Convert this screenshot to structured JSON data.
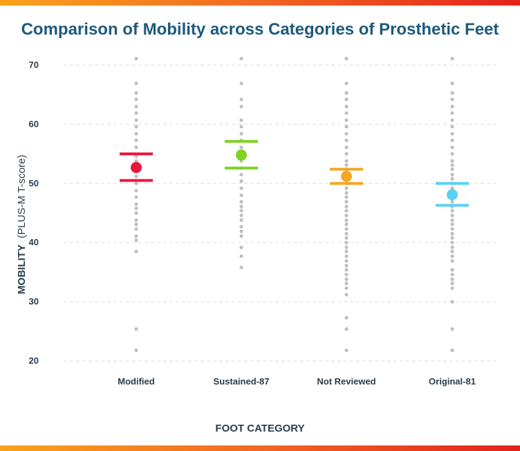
{
  "colors": {
    "title": "#1d5a7c",
    "text": "#2a3d4c",
    "grid": "#dddddd",
    "dots": "#bfbfbf",
    "banner_start": "#f9a21c",
    "banner_end": "#e2231a"
  },
  "chart_data": {
    "type": "scatter",
    "title": "Comparison of Mobility across Categories of Prosthetic Feet",
    "xlabel": "FOOT CATEGORY",
    "ylabel": {
      "main": "MOBILITY",
      "unit": "(PLUS-M T-score)"
    },
    "ylim": [
      20,
      70
    ],
    "yticks": [
      20,
      30,
      40,
      50,
      60,
      70
    ],
    "grid": true,
    "categories": [
      "Modified",
      "Sustained-87",
      "Not Reviewed",
      "Original-81"
    ],
    "series": [
      {
        "category": "Modified",
        "color": "#e8173f",
        "mean": 52.7,
        "upper": 55.0,
        "lower": 50.5,
        "points": [
          71.1,
          66.9,
          65.3,
          64.2,
          63.0,
          61.9,
          60.7,
          59.6,
          58.4,
          57.3,
          56.1,
          54.6,
          53.8,
          52.4,
          51.2,
          50.0,
          48.8,
          47.7,
          46.5,
          45.8,
          45.0,
          43.8,
          43.1,
          42.3,
          41.1,
          40.4,
          38.5,
          25.4,
          21.8
        ]
      },
      {
        "category": "Sustained-87",
        "color": "#7ed321",
        "mean": 54.8,
        "upper": 57.1,
        "lower": 52.6,
        "points": [
          71.1,
          66.9,
          64.2,
          63.0,
          60.7,
          59.6,
          58.4,
          57.3,
          56.1,
          55.0,
          53.8,
          52.6,
          51.5,
          50.4,
          49.2,
          48.0,
          46.9,
          46.1,
          45.4,
          44.6,
          43.8,
          42.7,
          41.9,
          41.1,
          39.2,
          37.7,
          35.8
        ]
      },
      {
        "category": "Not Reviewed",
        "color": "#f5a623",
        "mean": 51.2,
        "upper": 52.4,
        "lower": 50.0,
        "points": [
          71.1,
          66.9,
          65.3,
          64.2,
          63.0,
          61.9,
          60.7,
          59.6,
          58.4,
          57.3,
          56.1,
          55.0,
          53.8,
          53.1,
          52.4,
          51.5,
          50.8,
          50.0,
          49.2,
          48.4,
          47.7,
          46.9,
          46.1,
          45.4,
          44.6,
          43.8,
          43.1,
          42.3,
          41.5,
          40.8,
          40.0,
          39.2,
          38.5,
          37.7,
          36.9,
          36.1,
          35.4,
          34.6,
          33.8,
          33.1,
          32.3,
          31.2,
          27.3,
          25.4,
          21.8
        ]
      },
      {
        "category": "Original-81",
        "color": "#5ad0f5",
        "mean": 48.1,
        "upper": 50.0,
        "lower": 46.3,
        "points": [
          71.1,
          66.9,
          65.3,
          64.2,
          63.0,
          61.9,
          60.7,
          59.6,
          58.4,
          57.3,
          56.1,
          55.0,
          53.8,
          53.1,
          52.4,
          51.5,
          50.8,
          50.0,
          49.2,
          48.4,
          47.7,
          46.9,
          46.1,
          45.4,
          44.6,
          43.8,
          43.1,
          42.3,
          41.5,
          40.8,
          40.0,
          39.2,
          38.5,
          37.7,
          36.9,
          35.4,
          34.6,
          33.8,
          33.1,
          32.3,
          30.0,
          25.4,
          21.8
        ]
      }
    ]
  }
}
